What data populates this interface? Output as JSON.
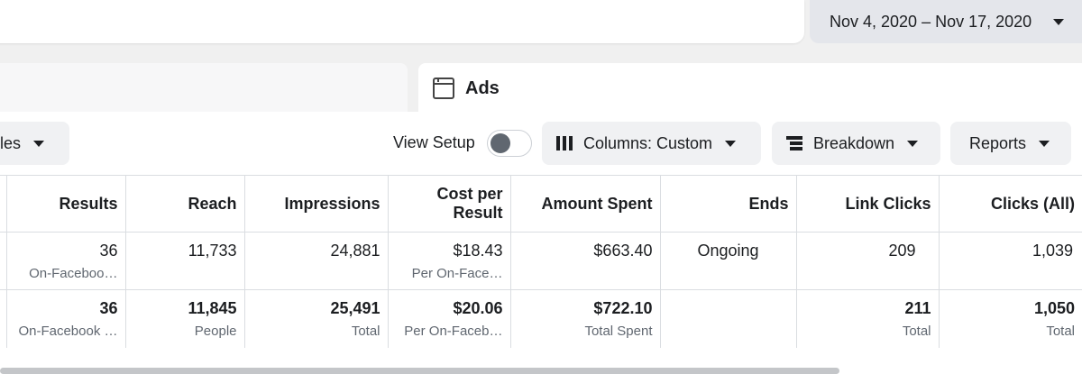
{
  "date_range": "Nov 4, 2020 – Nov 17, 2020",
  "tabs": {
    "ads_label": "Ads"
  },
  "toolbar": {
    "rules_label": "ules",
    "view_setup_label": "View Setup",
    "view_setup_on": false,
    "columns_label": "Columns: Custom",
    "breakdown_label": "Breakdown",
    "reports_label": "Reports"
  },
  "table": {
    "headers": [
      "Results",
      "Reach",
      "Impressions",
      "Cost per Result",
      "Amount Spent",
      "Ends",
      "Link Clicks",
      "Clicks (All)"
    ],
    "row": [
      {
        "main": "36",
        "sub": "On-Faceboo…"
      },
      {
        "main": "11,733",
        "sub": ""
      },
      {
        "main": "24,881",
        "sub": ""
      },
      {
        "main": "$18.43",
        "sub": "Per On-Face…"
      },
      {
        "main": "$663.40",
        "sub": ""
      },
      {
        "main": "Ongoing",
        "sub": ""
      },
      {
        "main": "209",
        "sub": ""
      },
      {
        "main": "1,039",
        "sub": ""
      }
    ],
    "totals": [
      {
        "main": "36",
        "sub": "On-Facebook …"
      },
      {
        "main": "11,845",
        "sub": "People"
      },
      {
        "main": "25,491",
        "sub": "Total"
      },
      {
        "main": "$20.06",
        "sub": "Per On-Faceb…"
      },
      {
        "main": "$722.10",
        "sub": "Total Spent"
      },
      {
        "main": "",
        "sub": ""
      },
      {
        "main": "211",
        "sub": "Total"
      },
      {
        "main": "1,050",
        "sub": "Total"
      }
    ]
  }
}
